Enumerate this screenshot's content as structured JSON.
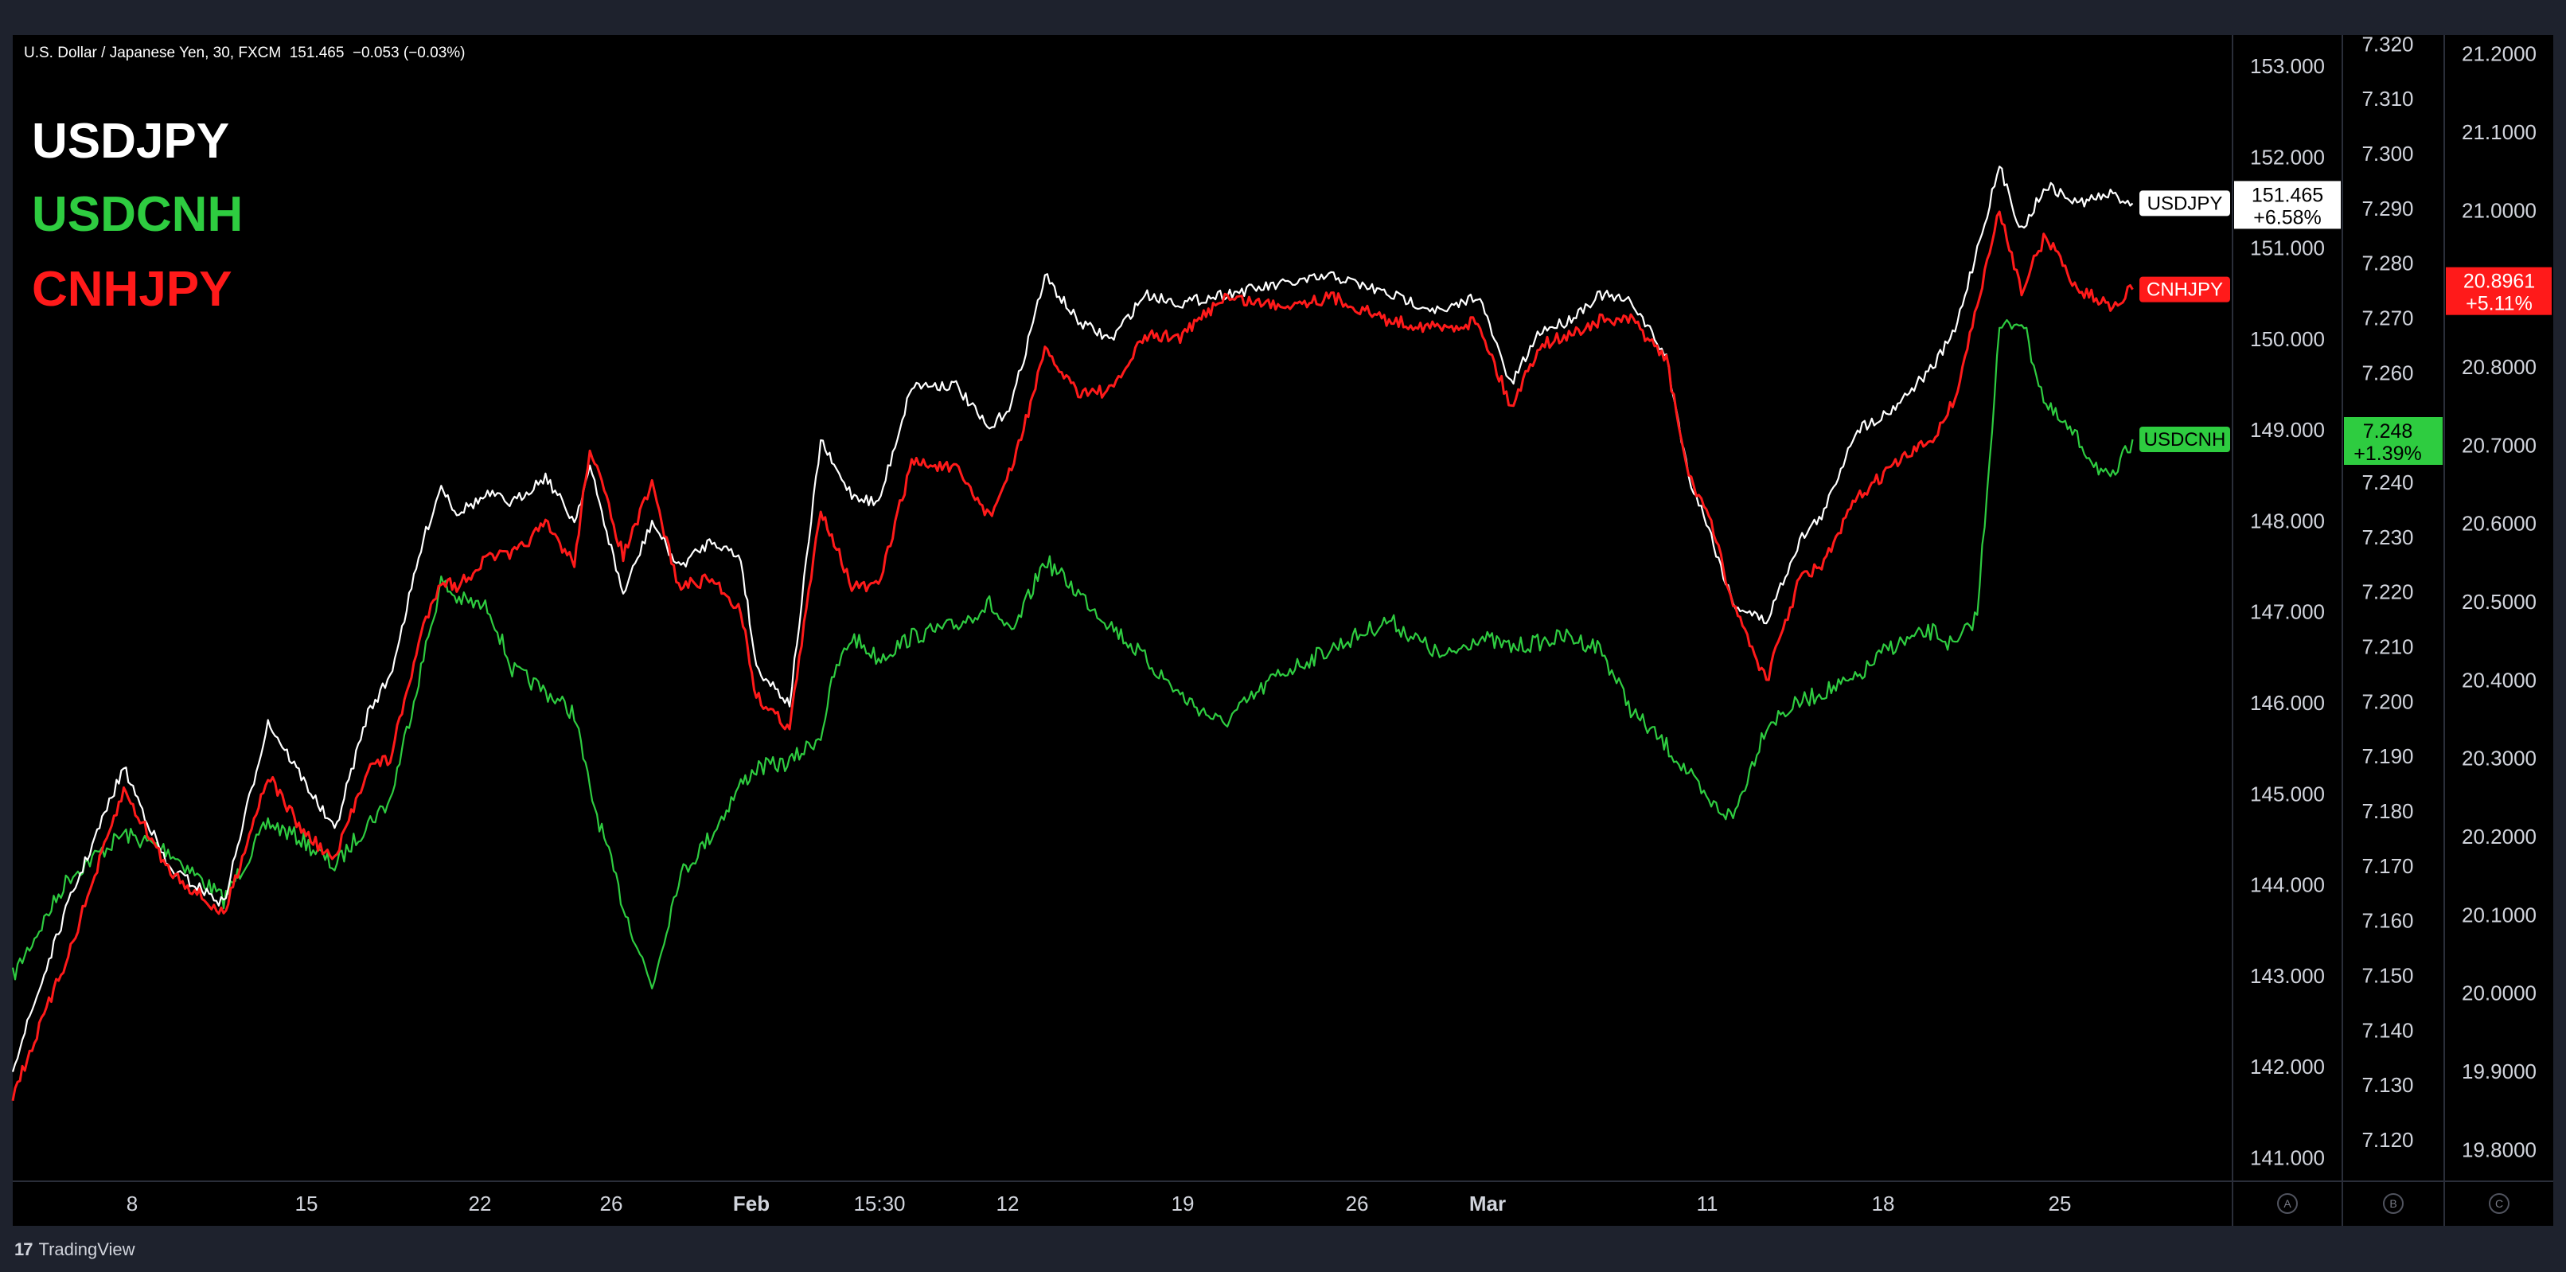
{
  "header": {
    "symbol_line": "U.S. Dollar / Japanese Yen, 30, FXCM  151.465  −0.053 (−0.03%)"
  },
  "legend": [
    {
      "label": "USDJPY",
      "color": "#ffffff"
    },
    {
      "label": "USDCNH",
      "color": "#2ecc40"
    },
    {
      "label": "CNHJPY",
      "color": "#ff1a1a"
    }
  ],
  "brand": {
    "name": "TradingView",
    "logo_text": "17"
  },
  "scale_buttons": [
    "A",
    "B",
    "C"
  ],
  "chart_data": {
    "type": "line",
    "x_tick_labels": [
      "8",
      "15",
      "22",
      "26",
      "Feb",
      "15:30",
      "12",
      "19",
      "26",
      "Mar",
      "11",
      "18",
      "25"
    ],
    "axes": {
      "A": {
        "label_values": [
          "153.000",
          "152.000",
          "151.000",
          "150.000",
          "149.000",
          "148.000",
          "147.000",
          "146.000",
          "145.000",
          "144.000",
          "143.000",
          "142.000",
          "141.000"
        ],
        "range": [
          140.75,
          153.35
        ]
      },
      "B": {
        "label_values": [
          "7.320",
          "7.310",
          "7.300",
          "7.290",
          "7.280",
          "7.270",
          "7.260",
          "7.250",
          "7.240",
          "7.230",
          "7.220",
          "7.210",
          "7.200",
          "7.190",
          "7.180",
          "7.170",
          "7.160",
          "7.150",
          "7.140",
          "7.130",
          "7.120"
        ],
        "range": [
          7.1126,
          7.3218
        ]
      },
      "C": {
        "label_values": [
          "21.2000",
          "21.1000",
          "21.0000",
          "20.9000",
          "20.8000",
          "20.7000",
          "20.6000",
          "20.5000",
          "20.4000",
          "20.3000",
          "20.2000",
          "20.1000",
          "20.0000",
          "19.9000",
          "19.8000"
        ],
        "range": [
          19.7607,
          21.2251
        ]
      }
    },
    "series": [
      {
        "name": "USDJPY",
        "axis": "A",
        "color": "#ffffff",
        "label_box": {
          "text": "USDJPY",
          "bg": "#ffffff",
          "fg": "#000000"
        },
        "price_box": {
          "value": "151.465",
          "change": "+6.58%",
          "bg": "#ffffff",
          "fg": "#000000"
        },
        "x": [
          0.0,
          2.5,
          5.0,
          7.0,
          9.5,
          11.5,
          13.0,
          14.5,
          16.0,
          17.0,
          18.5,
          19.3,
          20.0,
          21.5,
          22.5,
          24.0,
          25.3,
          26.0,
          27.5,
          28.8,
          30.0,
          31.5,
          32.8,
          33.5,
          35.0,
          36.4,
          37.0,
          37.8,
          39.0,
          40.5,
          42.5,
          44.0,
          45.0,
          46.5,
          48.0,
          49.5,
          51.0,
          52.7,
          54.5,
          57.0,
          59.5,
          62.0,
          64.5,
          66.0,
          67.5,
          68.8,
          70.0,
          71.5,
          73.0,
          74.5,
          75.5,
          76.3,
          77.5,
          79.0,
          80.5,
          81.6,
          83.0,
          84.5,
          86.5,
          87.5,
          88.5,
          89.5,
          90.5,
          91.6,
          93.0,
          94.5,
          95.5
        ],
        "values": [
          142.0,
          143.8,
          145.3,
          144.2,
          143.8,
          145.8,
          145.2,
          144.6,
          145.9,
          146.3,
          147.8,
          148.4,
          148.1,
          148.3,
          148.2,
          148.5,
          148.0,
          148.6,
          147.2,
          148.0,
          147.5,
          147.8,
          147.6,
          146.4,
          146.0,
          148.9,
          148.6,
          148.3,
          148.2,
          149.5,
          149.5,
          149.0,
          149.3,
          150.7,
          150.2,
          150.0,
          150.5,
          150.4,
          150.5,
          150.6,
          150.7,
          150.5,
          150.3,
          150.5,
          149.5,
          150.1,
          150.2,
          150.5,
          150.4,
          149.8,
          148.5,
          148.0,
          147.1,
          146.9,
          147.8,
          148.1,
          149.0,
          149.2,
          149.7,
          150.1,
          151.0,
          151.9,
          151.2,
          151.7,
          151.5,
          151.6,
          151.5
        ]
      },
      {
        "name": "USDCNH",
        "axis": "B",
        "color": "#2ecc40",
        "label_box": {
          "text": "USDCNH",
          "bg": "#2ecc40",
          "fg": "#000000"
        },
        "price_box": {
          "value": "7.248",
          "change": "+1.39%",
          "bg": "#2ecc40",
          "fg": "#000000"
        },
        "x": [
          0.0,
          2.5,
          5.0,
          7.0,
          9.5,
          11.5,
          13.0,
          14.5,
          16.0,
          17.0,
          18.5,
          19.3,
          20.0,
          21.5,
          22.5,
          24.0,
          25.3,
          26.0,
          27.5,
          28.8,
          30.0,
          31.5,
          32.8,
          33.5,
          35.0,
          36.4,
          37.0,
          37.8,
          39.0,
          40.5,
          42.5,
          44.0,
          45.0,
          46.5,
          48.0,
          49.5,
          51.0,
          52.7,
          54.5,
          57.0,
          59.5,
          62.0,
          64.5,
          66.0,
          67.5,
          68.8,
          70.0,
          71.5,
          73.0,
          74.5,
          75.5,
          76.3,
          77.5,
          79.0,
          80.5,
          81.6,
          83.0,
          84.5,
          86.5,
          87.5,
          88.5,
          89.5,
          90.5,
          91.6,
          93.0,
          94.5,
          95.5
        ],
        "values": [
          7.15,
          7.168,
          7.176,
          7.173,
          7.164,
          7.178,
          7.175,
          7.17,
          7.178,
          7.182,
          7.208,
          7.222,
          7.219,
          7.217,
          7.206,
          7.202,
          7.198,
          7.184,
          7.163,
          7.148,
          7.168,
          7.176,
          7.185,
          7.188,
          7.189,
          7.194,
          7.205,
          7.212,
          7.208,
          7.212,
          7.214,
          7.218,
          7.212,
          7.226,
          7.22,
          7.214,
          7.208,
          7.201,
          7.196,
          7.205,
          7.21,
          7.215,
          7.208,
          7.212,
          7.21,
          7.211,
          7.212,
          7.21,
          7.198,
          7.192,
          7.187,
          7.182,
          7.179,
          7.196,
          7.2,
          7.202,
          7.204,
          7.21,
          7.213,
          7.21,
          7.216,
          7.268,
          7.27,
          7.254,
          7.248,
          7.24,
          7.248
        ]
      },
      {
        "name": "CNHJPY",
        "axis": "C",
        "color": "#ff1a1a",
        "label_box": {
          "text": "CNHJPY",
          "bg": "#ff1a1a",
          "fg": "#ffffff"
        },
        "price_box": {
          "value": "20.8961",
          "change": "+5.11%",
          "bg": "#ff1a1a",
          "fg": "#ffffff"
        },
        "x": [
          0.0,
          2.5,
          5.0,
          7.0,
          9.5,
          11.5,
          13.0,
          14.5,
          16.0,
          17.0,
          18.5,
          19.3,
          20.0,
          21.5,
          22.5,
          24.0,
          25.3,
          26.0,
          27.5,
          28.8,
          30.0,
          31.5,
          32.8,
          33.5,
          35.0,
          36.4,
          37.0,
          37.8,
          39.0,
          40.5,
          42.5,
          44.0,
          45.0,
          46.5,
          48.0,
          49.5,
          51.0,
          52.7,
          54.5,
          57.0,
          59.5,
          62.0,
          64.5,
          66.0,
          67.5,
          68.8,
          70.0,
          71.5,
          73.0,
          74.5,
          75.5,
          76.3,
          77.5,
          79.0,
          80.5,
          81.6,
          83.0,
          84.5,
          86.5,
          87.5,
          88.5,
          89.5,
          90.5,
          91.6,
          93.0,
          94.5,
          95.5
        ],
        "values": [
          19.87,
          20.05,
          20.26,
          20.16,
          20.1,
          20.28,
          20.21,
          20.17,
          20.29,
          20.3,
          20.47,
          20.53,
          20.52,
          20.56,
          20.56,
          20.6,
          20.55,
          20.7,
          20.56,
          20.65,
          20.52,
          20.53,
          20.49,
          20.38,
          20.34,
          20.62,
          20.58,
          20.52,
          20.52,
          20.68,
          20.67,
          20.61,
          20.67,
          20.82,
          20.77,
          20.77,
          20.84,
          20.84,
          20.89,
          20.88,
          20.89,
          20.86,
          20.85,
          20.86,
          20.75,
          20.83,
          20.84,
          20.86,
          20.86,
          20.81,
          20.66,
          20.62,
          20.5,
          20.4,
          20.53,
          20.55,
          20.63,
          20.67,
          20.71,
          20.76,
          20.88,
          21.0,
          20.9,
          20.97,
          20.9,
          20.88,
          20.9
        ]
      }
    ]
  }
}
